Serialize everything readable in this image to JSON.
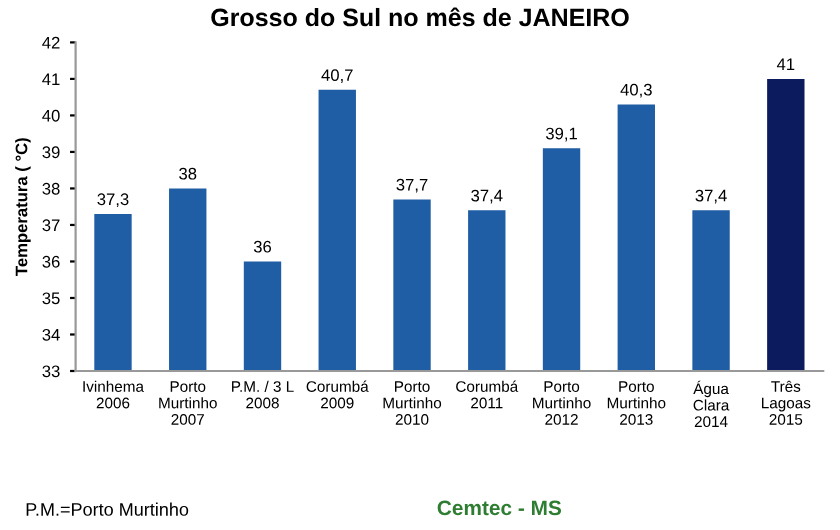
{
  "chart_data": {
    "type": "bar",
    "title": "Grosso do Sul no mês de JANEIRO",
    "ylabel": "Temperatura ( °C)",
    "categories": [
      "Ivinhema\n2006",
      "Porto\nMurtinho\n2007",
      "P.M. / 3 L\n2008",
      "Corumbá\n2009",
      "Porto\nMurtinho\n2010",
      "Corumbá\n2011",
      "Porto\nMurtinho\n2012",
      "Porto\nMurtinho\n2013",
      "Água\nClara\n2014",
      "Três\nLagoas\n2015"
    ],
    "values": [
      37.3,
      38,
      36,
      40.7,
      37.7,
      37.4,
      39.1,
      40.3,
      37.4,
      41
    ],
    "value_labels": [
      "37,3",
      "38",
      "36",
      "40,7",
      "37,7",
      "37,4",
      "39,1",
      "40,3",
      "37,4",
      "41"
    ],
    "colors": [
      "#1f5da4",
      "#1f5da4",
      "#1f5da4",
      "#1f5da4",
      "#1f5da4",
      "#1f5da4",
      "#1f5da4",
      "#1f5da4",
      "#1f5da4",
      "#0c1a5e"
    ],
    "ylim": [
      33,
      42
    ],
    "yticks": [
      33,
      34,
      35,
      36,
      37,
      38,
      39,
      40,
      41,
      42
    ],
    "grid": false,
    "legend": false,
    "annotations": [
      "P.M.=Porto Murtinho",
      "Cemtec - MS"
    ]
  }
}
